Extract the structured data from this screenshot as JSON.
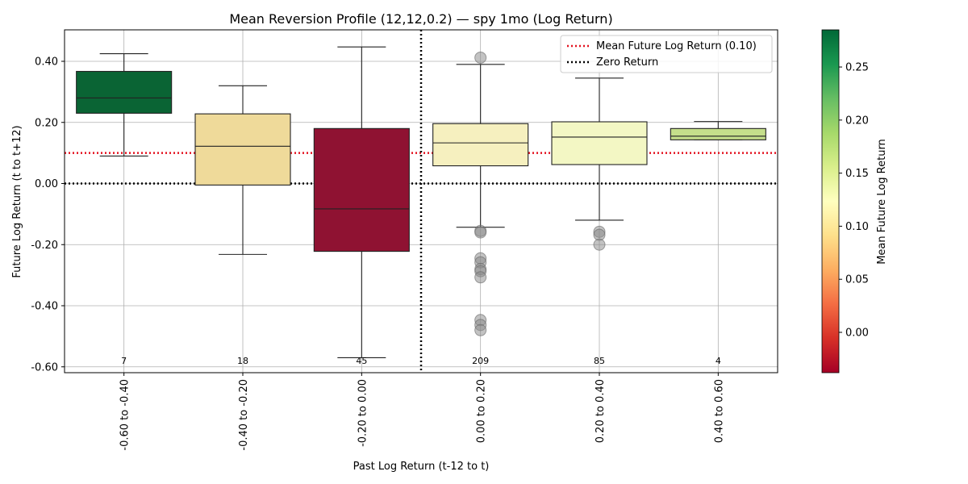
{
  "chart_data": {
    "type": "box",
    "title": "Mean Reversion Profile (12,12,0.2) — spy 1mo (Log Return)",
    "xlabel": "Past Log Return (t-12 to t)",
    "ylabel": "Future Log Return (t to t+12)",
    "ylim": [
      -0.62,
      0.5
    ],
    "y_ticks": [
      -0.6,
      -0.4,
      -0.2,
      0.0,
      0.2,
      0.4
    ],
    "y_tick_labels": [
      "-0.60",
      "-0.40",
      "-0.20",
      "0.00",
      "0.20",
      "0.40"
    ],
    "grid": true,
    "categories": [
      "-0.60 to -0.40",
      "-0.40 to -0.20",
      "-0.20 to 0.00",
      "0.00 to 0.20",
      "0.20 to 0.40",
      "0.40 to 0.60"
    ],
    "boxes": [
      {
        "q1": 0.23,
        "median": 0.28,
        "q3": 0.367,
        "whisker_low": 0.09,
        "whisker_high": 0.425,
        "count": "7",
        "color": "#0a6434",
        "outliers": []
      },
      {
        "q1": -0.005,
        "median": 0.122,
        "q3": 0.228,
        "whisker_low": -0.232,
        "whisker_high": 0.32,
        "count": "18",
        "color": "#efda9a",
        "outliers": []
      },
      {
        "q1": -0.222,
        "median": -0.083,
        "q3": 0.18,
        "whisker_low": -0.57,
        "whisker_high": 0.447,
        "count": "45",
        "color": "#8f1232",
        "outliers": []
      },
      {
        "q1": 0.058,
        "median": 0.133,
        "q3": 0.196,
        "whisker_low": -0.143,
        "whisker_high": 0.39,
        "count": "209",
        "color": "#f6f0bf",
        "outliers": [
          0.412,
          -0.155,
          -0.16,
          -0.245,
          -0.258,
          -0.28,
          -0.287,
          -0.307,
          -0.447,
          -0.463,
          -0.48
        ]
      },
      {
        "q1": 0.062,
        "median": 0.152,
        "q3": 0.202,
        "whisker_low": -0.12,
        "whisker_high": 0.345,
        "count": "85",
        "color": "#f3f7c4",
        "outliers": [
          -0.158,
          -0.168,
          -0.2
        ]
      },
      {
        "q1": 0.143,
        "median": 0.155,
        "q3": 0.18,
        "whisker_low": 0.143,
        "whisker_high": 0.203,
        "count": "4",
        "color": "#c5df8b",
        "outliers": []
      }
    ],
    "vertical_divider_at": "between -0.20 to 0.00 and 0.00 to 0.20",
    "reference_lines": [
      {
        "name": "Mean Future Log Return (0.10)",
        "y": 0.1,
        "color": "#e3101e",
        "style": "dotted"
      },
      {
        "name": "Zero Return",
        "y": 0.0,
        "color": "#000000",
        "style": "dotted"
      }
    ],
    "legend_position": "top-right",
    "colorbar": {
      "label": "Mean Future Log Return",
      "range": [
        -0.038,
        0.285
      ],
      "ticks": [
        0.0,
        0.05,
        0.1,
        0.15,
        0.2,
        0.25
      ],
      "tick_labels": [
        "0.00",
        "0.05",
        "0.10",
        "0.15",
        "0.20",
        "0.25"
      ],
      "colormap": "RdYlGn"
    }
  }
}
